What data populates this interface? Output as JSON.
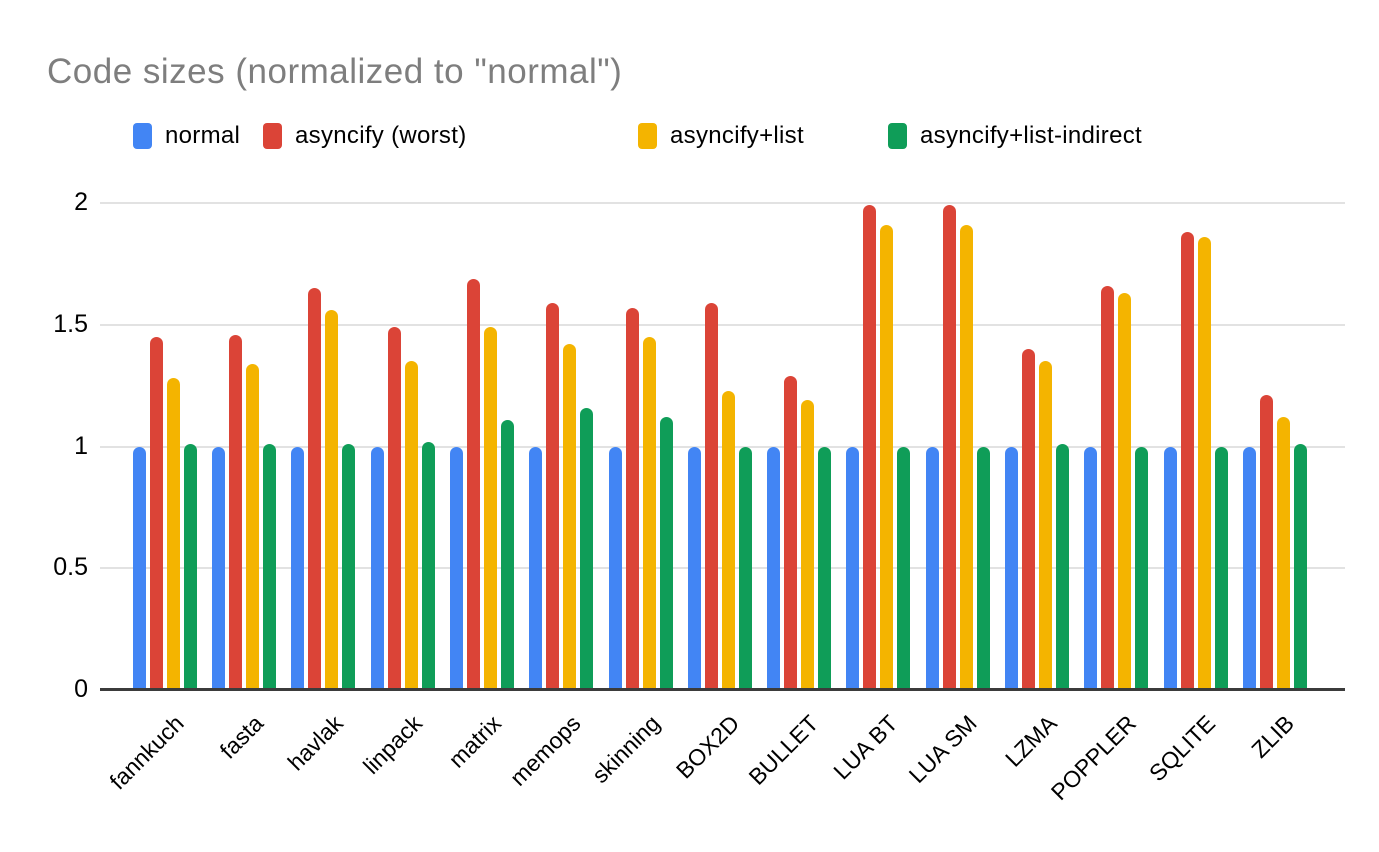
{
  "chart_data": {
    "type": "bar",
    "title": "Code sizes (normalized to \"normal\")",
    "categories": [
      "fannkuch",
      "fasta",
      "havlak",
      "linpack",
      "matrix",
      "memops",
      "skinning",
      "BOX2D",
      "BULLET",
      "LUA BT",
      "LUA SM",
      "LZMA",
      "POPPLER",
      "SQLITE",
      "ZLIB"
    ],
    "series": [
      {
        "name": "normal",
        "color": "#4285F4",
        "values": [
          1.0,
          1.0,
          1.0,
          1.0,
          1.0,
          1.0,
          1.0,
          1.0,
          1.0,
          1.0,
          1.0,
          1.0,
          1.0,
          1.0,
          1.0
        ]
      },
      {
        "name": "asyncify (worst)",
        "color": "#DB4437",
        "values": [
          1.45,
          1.46,
          1.65,
          1.49,
          1.69,
          1.59,
          1.57,
          1.59,
          1.29,
          1.99,
          1.99,
          1.4,
          1.66,
          1.88,
          1.21
        ]
      },
      {
        "name": "asyncify+list",
        "color": "#F4B400",
        "values": [
          1.28,
          1.34,
          1.56,
          1.35,
          1.49,
          1.42,
          1.45,
          1.23,
          1.19,
          1.91,
          1.91,
          1.35,
          1.63,
          1.86,
          1.12
        ]
      },
      {
        "name": "asyncify+list-indirect",
        "color": "#0F9D58",
        "values": [
          1.01,
          1.01,
          1.01,
          1.02,
          1.11,
          1.16,
          1.12,
          1.0,
          1.0,
          1.0,
          1.0,
          1.01,
          1.0,
          1.0,
          1.01
        ]
      }
    ],
    "y_ticks": [
      "0",
      "0.5",
      "1",
      "1.5",
      "2"
    ],
    "ylim": [
      0,
      2
    ],
    "grid": true,
    "legend_position": "top",
    "style": {
      "title_color": "#7E7E7E",
      "label_color": "#000000",
      "gridline_color": "#E2E2E2",
      "baseline_color": "#3B3B3B",
      "background": "#FFFFFF"
    }
  }
}
